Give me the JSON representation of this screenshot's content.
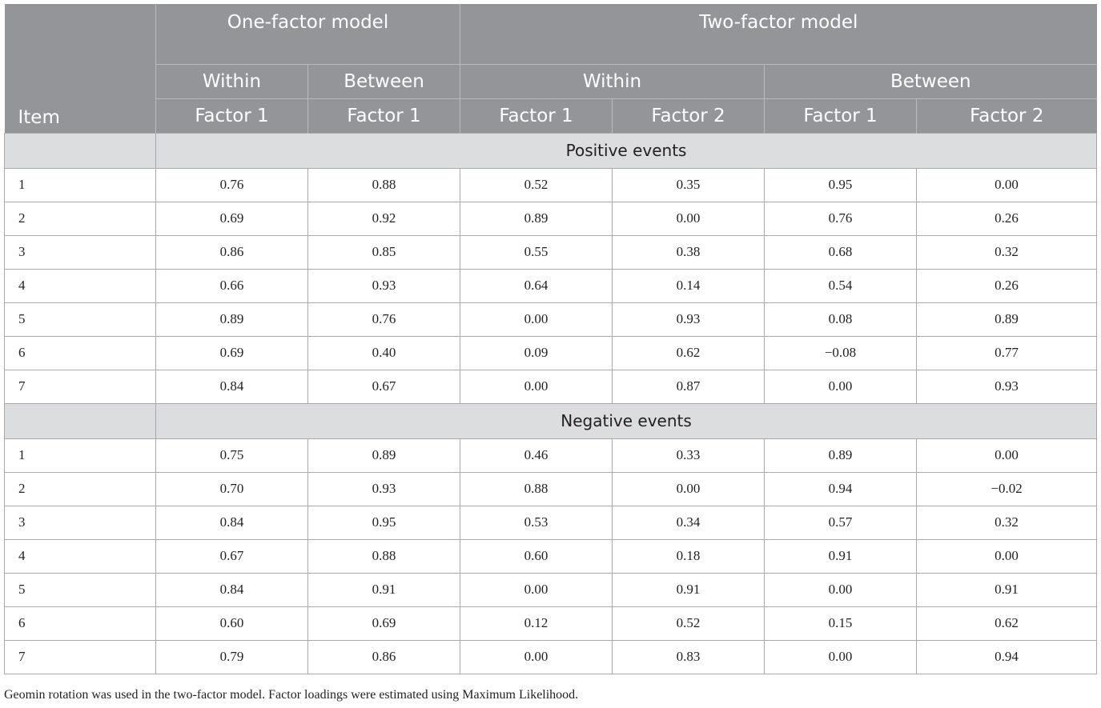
{
  "header": {
    "item_label": "Item",
    "one_factor_label": "One-factor model",
    "two_factor_label": "Two-factor model",
    "one_factor_sub": [
      "Within",
      "Between"
    ],
    "two_factor_sub": [
      "Within",
      "Between"
    ],
    "factor_columns": [
      "Factor 1",
      "Factor 1",
      "Factor 1",
      "Factor 2",
      "Factor 1",
      "Factor 2"
    ]
  },
  "sections": [
    {
      "title": "Positive events",
      "rows": [
        [
          "1",
          "0.76",
          "0.88",
          "0.52",
          "0.35",
          "0.95",
          "0.00"
        ],
        [
          "2",
          "0.69",
          "0.92",
          "0.89",
          "0.00",
          "0.76",
          "0.26"
        ],
        [
          "3",
          "0.86",
          "0.85",
          "0.55",
          "0.38",
          "0.68",
          "0.32"
        ],
        [
          "4",
          "0.66",
          "0.93",
          "0.64",
          "0.14",
          "0.54",
          "0.26"
        ],
        [
          "5",
          "0.89",
          "0.76",
          "0.00",
          "0.93",
          "0.08",
          "0.89"
        ],
        [
          "6",
          "0.69",
          "0.40",
          "0.09",
          "0.62",
          "−0.08",
          "0.77"
        ],
        [
          "7",
          "0.84",
          "0.67",
          "0.00",
          "0.87",
          "0.00",
          "0.93"
        ]
      ]
    },
    {
      "title": "Negative events",
      "rows": [
        [
          "1",
          "0.75",
          "0.89",
          "0.46",
          "0.33",
          "0.89",
          "0.00"
        ],
        [
          "2",
          "0.70",
          "0.93",
          "0.88",
          "0.00",
          "0.94",
          "−0.02"
        ],
        [
          "3",
          "0.84",
          "0.95",
          "0.53",
          "0.34",
          "0.57",
          "0.32"
        ],
        [
          "4",
          "0.67",
          "0.88",
          "0.60",
          "0.18",
          "0.91",
          "0.00"
        ],
        [
          "5",
          "0.84",
          "0.91",
          "0.00",
          "0.91",
          "0.00",
          "0.91"
        ],
        [
          "6",
          "0.60",
          "0.69",
          "0.12",
          "0.52",
          "0.15",
          "0.62"
        ],
        [
          "7",
          "0.79",
          "0.86",
          "0.00",
          "0.83",
          "0.00",
          "0.94"
        ]
      ]
    }
  ],
  "footnote": "Geomin rotation was used in the two-factor model. Factor loadings were estimated using Maximum Likelihood."
}
